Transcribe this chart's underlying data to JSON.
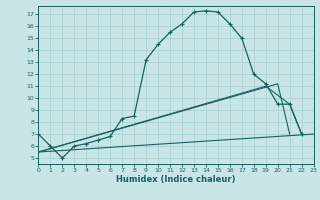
{
  "xlabel": "Humidex (Indice chaleur)",
  "bg_color": "#c8e6e6",
  "grid_color": "#a8cece",
  "line_color": "#1a6060",
  "xlim": [
    0,
    23
  ],
  "ylim": [
    4.5,
    17.7
  ],
  "xticks": [
    0,
    1,
    2,
    3,
    4,
    5,
    6,
    7,
    8,
    9,
    10,
    11,
    12,
    13,
    14,
    15,
    16,
    17,
    18,
    19,
    20,
    21,
    22,
    23
  ],
  "yticks": [
    5,
    6,
    7,
    8,
    9,
    10,
    11,
    12,
    13,
    14,
    15,
    16,
    17
  ],
  "main_x": [
    0,
    1,
    2,
    3,
    4,
    5,
    6,
    7,
    8,
    9,
    10,
    11,
    12,
    13,
    14,
    15,
    16,
    17,
    18,
    19,
    20,
    21,
    22
  ],
  "main_y": [
    7.0,
    6.0,
    5.0,
    6.0,
    6.2,
    6.5,
    6.8,
    8.3,
    8.5,
    13.2,
    14.5,
    15.5,
    16.2,
    17.2,
    17.3,
    17.2,
    16.2,
    15.0,
    12.0,
    11.2,
    9.5,
    9.5,
    7.0
  ],
  "line2_x": [
    0,
    23
  ],
  "line2_y": [
    5.5,
    7.0
  ],
  "line3_x": [
    0,
    20,
    21
  ],
  "line3_y": [
    5.5,
    11.2,
    7.0
  ],
  "line4_x": [
    0,
    19,
    21,
    22
  ],
  "line4_y": [
    5.5,
    11.0,
    9.5,
    7.0
  ],
  "figsize": [
    3.2,
    2.0
  ],
  "dpi": 100
}
